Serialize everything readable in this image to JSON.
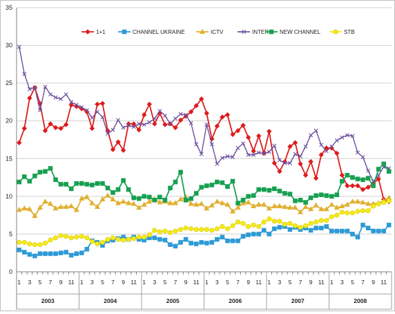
{
  "chart_data": {
    "type": "line",
    "title": "",
    "xlabel": "",
    "ylabel": "",
    "ylim": [
      0,
      35
    ],
    "yticks": [
      "0",
      "5",
      "10",
      "15",
      "20",
      "25",
      "30",
      "35"
    ],
    "grid": true,
    "legend_position": "top",
    "years": [
      "2003",
      "2004",
      "2005",
      "2006",
      "2007",
      "2008"
    ],
    "month_ticks": [
      "1",
      "3",
      "5",
      "7",
      "9",
      "11"
    ],
    "x": [
      "2003-01",
      "2003-02",
      "2003-03",
      "2003-04",
      "2003-05",
      "2003-06",
      "2003-07",
      "2003-08",
      "2003-09",
      "2003-10",
      "2003-11",
      "2003-12",
      "2004-01",
      "2004-02",
      "2004-03",
      "2004-04",
      "2004-05",
      "2004-06",
      "2004-07",
      "2004-08",
      "2004-09",
      "2004-10",
      "2004-11",
      "2004-12",
      "2005-01",
      "2005-02",
      "2005-03",
      "2005-04",
      "2005-05",
      "2005-06",
      "2005-07",
      "2005-08",
      "2005-09",
      "2005-10",
      "2005-11",
      "2005-12",
      "2006-01",
      "2006-02",
      "2006-03",
      "2006-04",
      "2006-05",
      "2006-06",
      "2006-07",
      "2006-08",
      "2006-09",
      "2006-10",
      "2006-11",
      "2006-12",
      "2007-01",
      "2007-02",
      "2007-03",
      "2007-04",
      "2007-05",
      "2007-06",
      "2007-07",
      "2007-08",
      "2007-09",
      "2007-10",
      "2007-11",
      "2007-12",
      "2008-01",
      "2008-02",
      "2008-03",
      "2008-04",
      "2008-05",
      "2008-06",
      "2008-07",
      "2008-08",
      "2008-09",
      "2008-10",
      "2008-11",
      "2008-12"
    ],
    "series": [
      {
        "name": "1+1",
        "color": "#dd1c1c",
        "marker": "diamond",
        "values": [
          17.1,
          19.0,
          23.0,
          24.4,
          22.3,
          18.7,
          19.6,
          19.1,
          19.0,
          19.5,
          22.1,
          21.9,
          21.6,
          21.2,
          19.0,
          22.2,
          22.3,
          18.7,
          16.2,
          17.2,
          16.1,
          19.6,
          19.6,
          18.8,
          20.8,
          22.2,
          19.6,
          21.0,
          19.5,
          19.6,
          19.1,
          20.1,
          20.6,
          21.2,
          22.0,
          22.9,
          21.0,
          17.6,
          19.3,
          20.5,
          20.8,
          18.2,
          18.7,
          19.4,
          17.8,
          16.0,
          18.0,
          15.7,
          18.6,
          14.4,
          13.3,
          14.6,
          16.6,
          17.1,
          14.3,
          12.8,
          14.6,
          12.4,
          15.5,
          16.4,
          16.4,
          15.7,
          12.8,
          11.4,
          11.4,
          11.4,
          10.9,
          11.2,
          11.7,
          12.3,
          9.6,
          9.3
        ]
      },
      {
        "name": "CHANNEL UKRAINE",
        "color": "#2e9ad6",
        "marker": "square",
        "values": [
          2.9,
          2.6,
          2.3,
          2.1,
          2.4,
          2.4,
          2.4,
          2.4,
          2.5,
          2.6,
          2.2,
          2.4,
          2.5,
          3.0,
          4.1,
          3.9,
          3.5,
          4.1,
          4.2,
          4.4,
          4.6,
          4.3,
          4.6,
          4.3,
          4.2,
          4.5,
          4.5,
          4.3,
          4.2,
          3.6,
          3.4,
          3.9,
          4.3,
          3.8,
          3.7,
          3.9,
          3.8,
          3.9,
          4.3,
          4.6,
          4.1,
          4.1,
          4.1,
          4.7,
          4.9,
          5.0,
          5.0,
          5.5,
          5.0,
          5.7,
          5.9,
          6.0,
          5.6,
          5.9,
          5.6,
          5.8,
          5.5,
          5.8,
          5.8,
          6.0,
          5.4,
          5.4,
          5.4,
          5.4,
          5.0,
          4.6,
          6.2,
          5.8,
          5.4,
          5.4,
          5.4,
          6.2
        ]
      },
      {
        "name": "ICTV",
        "color": "#e0b030",
        "marker": "triangle",
        "values": [
          8.2,
          8.4,
          8.3,
          7.4,
          8.5,
          9.3,
          9.0,
          8.4,
          8.6,
          8.6,
          8.7,
          8.2,
          9.7,
          9.9,
          9.1,
          8.6,
          9.6,
          10.1,
          9.6,
          9.1,
          9.3,
          9.1,
          9.0,
          8.5,
          8.9,
          9.3,
          9.6,
          9.2,
          9.3,
          9.1,
          9.1,
          9.6,
          9.9,
          9.0,
          8.9,
          9.0,
          8.4,
          8.8,
          9.3,
          9.1,
          8.9,
          8.0,
          8.5,
          9.1,
          9.2,
          8.7,
          8.9,
          8.9,
          8.4,
          8.7,
          8.7,
          8.6,
          8.5,
          8.5,
          7.9,
          8.6,
          8.3,
          8.8,
          8.3,
          8.3,
          8.9,
          8.5,
          8.7,
          8.9,
          9.3,
          9.3,
          9.2,
          9.0,
          9.0,
          9.1,
          9.4,
          9.8
        ]
      },
      {
        "name": "INTER",
        "color": "#6c4f9e",
        "marker": "x",
        "values": [
          29.8,
          26.2,
          24.2,
          24.4,
          21.4,
          24.5,
          23.5,
          23.1,
          22.9,
          23.5,
          22.5,
          22.1,
          21.8,
          21.4,
          20.4,
          21.2,
          20.5,
          18.3,
          18.8,
          20.1,
          19.1,
          19.4,
          19.2,
          19.6,
          19.5,
          19.8,
          20.3,
          21.3,
          20.7,
          19.6,
          20.3,
          20.9,
          20.8,
          19.7,
          16.9,
          15.6,
          19.5,
          16.9,
          14.3,
          15.1,
          15.3,
          15.2,
          16.4,
          17.0,
          15.5,
          15.5,
          15.8,
          15.7,
          15.9,
          16.7,
          14.8,
          14.4,
          14.4,
          15.6,
          15.3,
          16.6,
          18.1,
          18.7,
          16.8,
          16.0,
          16.6,
          17.4,
          17.8,
          18.1,
          18.0,
          15.8,
          15.2,
          13.4,
          12.0,
          12.8,
          13.9,
          13.7
        ]
      },
      {
        "name": "NEW CHANNEL",
        "color": "#17a051",
        "marker": "square",
        "values": [
          11.9,
          12.6,
          12.0,
          12.7,
          13.2,
          13.3,
          13.7,
          12.2,
          11.6,
          11.6,
          11.0,
          11.7,
          11.7,
          11.6,
          11.5,
          11.7,
          11.7,
          11.1,
          10.5,
          10.9,
          12.1,
          10.9,
          9.8,
          9.7,
          10.0,
          9.9,
          9.5,
          9.9,
          9.5,
          11.1,
          11.9,
          13.2,
          9.5,
          9.7,
          10.4,
          11.2,
          11.4,
          11.5,
          11.9,
          11.8,
          11.3,
          12.0,
          9.1,
          9.5,
          10.0,
          10.1,
          10.9,
          10.9,
          10.8,
          11.0,
          10.7,
          10.4,
          10.3,
          9.4,
          9.5,
          9.2,
          9.8,
          10.1,
          10.2,
          10.1,
          10.0,
          10.2,
          12.0,
          12.8,
          12.5,
          12.3,
          12.2,
          12.4,
          11.4,
          13.6,
          14.3,
          13.3
        ]
      },
      {
        "name": "STB",
        "color": "#f4ea1a",
        "marker": "circle",
        "values": [
          3.9,
          3.9,
          3.7,
          3.6,
          3.6,
          3.8,
          4.2,
          4.5,
          4.8,
          4.7,
          4.5,
          4.6,
          4.7,
          4.5,
          4.0,
          3.7,
          3.9,
          4.3,
          4.5,
          4.3,
          4.2,
          4.3,
          4.4,
          4.6,
          4.6,
          4.9,
          5.5,
          5.3,
          5.4,
          5.2,
          5.4,
          5.6,
          5.8,
          5.7,
          5.6,
          5.6,
          5.6,
          5.5,
          5.7,
          6.0,
          5.7,
          6.1,
          6.6,
          6.4,
          6.0,
          6.2,
          6.0,
          6.6,
          7.0,
          6.7,
          6.7,
          6.3,
          6.4,
          6.1,
          5.9,
          6.1,
          6.4,
          6.6,
          6.8,
          6.8,
          7.3,
          7.5,
          7.9,
          7.8,
          7.8,
          8.0,
          8.1,
          8.1,
          8.7,
          9.0,
          9.2,
          9.4
        ]
      }
    ]
  }
}
